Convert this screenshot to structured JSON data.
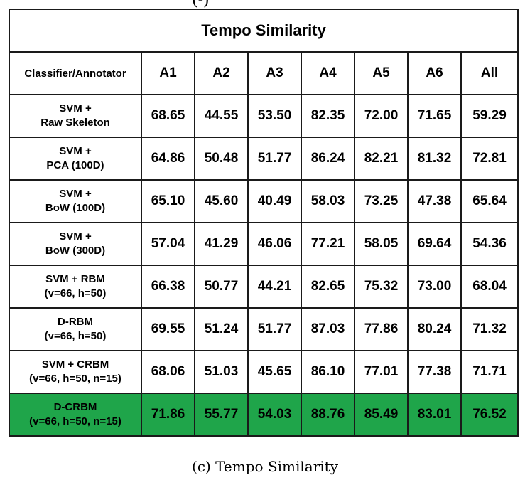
{
  "top_fragment": "(-)",
  "table": {
    "title": "Tempo Similarity",
    "columns": [
      "Classifier/Annotator",
      "A1",
      "A2",
      "A3",
      "A4",
      "A5",
      "A6",
      "All"
    ],
    "rows": [
      {
        "label": [
          "SVM +",
          "Raw Skeleton"
        ],
        "values": [
          "68.65",
          "44.55",
          "53.50",
          "82.35",
          "72.00",
          "71.65",
          "59.29"
        ]
      },
      {
        "label": [
          "SVM +",
          "PCA (100D)"
        ],
        "values": [
          "64.86",
          "50.48",
          "51.77",
          "86.24",
          "82.21",
          "81.32",
          "72.81"
        ]
      },
      {
        "label": [
          "SVM +",
          "BoW (100D)"
        ],
        "values": [
          "65.10",
          "45.60",
          "40.49",
          "58.03",
          "73.25",
          "47.38",
          "65.64"
        ]
      },
      {
        "label": [
          "SVM +",
          "BoW (300D)"
        ],
        "values": [
          "57.04",
          "41.29",
          "46.06",
          "77.21",
          "58.05",
          "69.64",
          "54.36"
        ]
      },
      {
        "label": [
          "SVM + RBM",
          "(v=66, h=50)"
        ],
        "values": [
          "66.38",
          "50.77",
          "44.21",
          "82.65",
          "75.32",
          "73.00",
          "68.04"
        ]
      },
      {
        "label": [
          "D-RBM",
          "(v=66, h=50)"
        ],
        "values": [
          "69.55",
          "51.24",
          "51.77",
          "87.03",
          "77.86",
          "80.24",
          "71.32"
        ]
      },
      {
        "label": [
          "SVM + CRBM",
          "(v=66, h=50, n=15)"
        ],
        "values": [
          "68.06",
          "51.03",
          "45.65",
          "86.10",
          "77.01",
          "77.38",
          "71.71"
        ]
      },
      {
        "label": [
          "D-CRBM",
          "(v=66, h=50, n=15)"
        ],
        "values": [
          "71.86",
          "55.77",
          "54.03",
          "88.76",
          "85.49",
          "83.01",
          "76.52"
        ],
        "highlight": true
      }
    ],
    "highlight_color": "#1fa54a"
  },
  "caption": "(c) Tempo Similarity"
}
